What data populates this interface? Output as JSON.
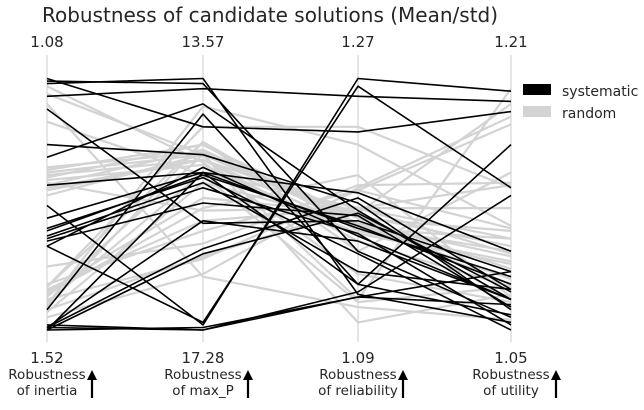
{
  "chart_data": {
    "type": "parallel-coordinates",
    "title": "Robustness of candidate solutions (Mean/std)",
    "axes": [
      {
        "label_line1": "Robustness",
        "label_line2": "of inertia",
        "top_tick": "1.08",
        "bottom_tick": "1.52",
        "max": 1.08,
        "min": 1.52,
        "arrow": "up"
      },
      {
        "label_line1": "Robustness",
        "label_line2": "of max_P",
        "top_tick": "13.57",
        "bottom_tick": "17.28",
        "max": 13.57,
        "min": 17.28,
        "arrow": "up"
      },
      {
        "label_line1": "Robustness",
        "label_line2": "of reliability",
        "top_tick": "1.27",
        "bottom_tick": "1.09",
        "max": 1.27,
        "min": 1.09,
        "arrow": "up"
      },
      {
        "label_line1": "Robustness",
        "label_line2": "of utility",
        "top_tick": "1.21",
        "bottom_tick": "1.05",
        "max": 1.21,
        "min": 1.05,
        "arrow": "up"
      }
    ],
    "legend": {
      "position": "top-right",
      "entries": [
        {
          "name": "systematic",
          "color": "#000000"
        },
        {
          "name": "random",
          "color": "#d3d3d3"
        }
      ]
    },
    "note": "Line values are normalized positions between bottom (0) and top (1) of each axis.",
    "series": [
      {
        "name": "random",
        "color": "#d3d3d3",
        "lines": [
          [
            0.09,
            0.74,
            0.31,
            0.62
          ],
          [
            0.11,
            0.62,
            0.48,
            0.36
          ],
          [
            0.07,
            0.58,
            0.42,
            0.29
          ],
          [
            0.13,
            0.69,
            0.12,
            0.95
          ],
          [
            0.17,
            0.74,
            0.39,
            0.27
          ],
          [
            0.55,
            0.67,
            0.4,
            0.36
          ],
          [
            0.53,
            0.69,
            0.42,
            0.2
          ],
          [
            0.6,
            0.73,
            0.41,
            0.31
          ],
          [
            0.62,
            0.69,
            0.44,
            0.24
          ],
          [
            0.64,
            0.7,
            0.45,
            0.33
          ],
          [
            0.57,
            0.71,
            0.42,
            0.18
          ],
          [
            0.59,
            0.65,
            0.38,
            0.26
          ],
          [
            0.63,
            0.73,
            0.44,
            0.39
          ],
          [
            0.56,
            0.67,
            0.35,
            0.17
          ],
          [
            0.61,
            0.67,
            0.46,
            0.12
          ],
          [
            0.12,
            0.28,
            0.55,
            0.81
          ],
          [
            0.15,
            0.52,
            0.46,
            0.89
          ],
          [
            0.05,
            0.22,
            0.56,
            0.84
          ],
          [
            0.1,
            0.88,
            0.73,
            0.41
          ],
          [
            0.96,
            0.66,
            0.22,
            0.11
          ],
          [
            0.82,
            0.61,
            0.11,
            0.17
          ],
          [
            0.93,
            0.69,
            0.03,
            0.14
          ],
          [
            0.89,
            0.21,
            0.09,
            0.04
          ],
          [
            0.58,
            0.47,
            0.48,
            0.57
          ],
          [
            0.14,
            0.48,
            0.61,
            0.13
          ],
          [
            0.17,
            0.8,
            0.8,
            0.56
          ],
          [
            0.08,
            0.29,
            0.48,
            0.48
          ],
          [
            0.16,
            0.43,
            0.48,
            0.3
          ],
          [
            0.18,
            0.39,
            0.55,
            0.4
          ],
          [
            0.25,
            0.34,
            0.57,
            0.58
          ]
        ]
      },
      {
        "name": "systematic",
        "color": "#000000",
        "lines": [
          [
            0.0,
            0.01,
            0.13,
            0.23
          ],
          [
            0.02,
            0.0,
            0.13,
            0.1
          ],
          [
            0.01,
            0.0,
            0.15,
            0.53
          ],
          [
            0.0,
            0.62,
            0.54,
            0.31
          ],
          [
            0.36,
            0.56,
            0.38,
            0.02
          ],
          [
            0.39,
            0.61,
            0.41,
            0.18
          ],
          [
            0.33,
            0.64,
            0.37,
            0.12
          ],
          [
            0.35,
            0.5,
            0.45,
            0.09
          ],
          [
            0.37,
            0.58,
            0.23,
            0.16
          ],
          [
            0.4,
            0.6,
            0.3,
            0.0
          ],
          [
            0.57,
            0.62,
            0.4,
            0.21
          ],
          [
            0.68,
            0.89,
            0.47,
            0.12
          ],
          [
            0.97,
            0.99,
            0.14,
            0.03
          ],
          [
            0.99,
            0.8,
            0.78,
            0.86
          ],
          [
            0.87,
            0.42,
            0.43,
            0.23
          ],
          [
            0.33,
            0.03,
            0.96,
            0.56
          ],
          [
            0.49,
            0.02,
            0.99,
            0.94
          ],
          [
            0.73,
            0.69,
            0.5,
            0.08
          ],
          [
            0.08,
            0.85,
            0.18,
            0.73
          ],
          [
            0.92,
            0.95,
            0.92,
            0.9
          ],
          [
            0.98,
            0.97,
            0.31,
            0.05
          ],
          [
            0.01,
            0.32,
            0.52,
            0.16
          ],
          [
            0.44,
            0.62,
            0.18,
            0.06
          ],
          [
            0.01,
            0.43,
            0.35,
            0.12
          ],
          [
            0.0,
            0.3,
            0.46,
            0.15
          ]
        ]
      }
    ]
  }
}
